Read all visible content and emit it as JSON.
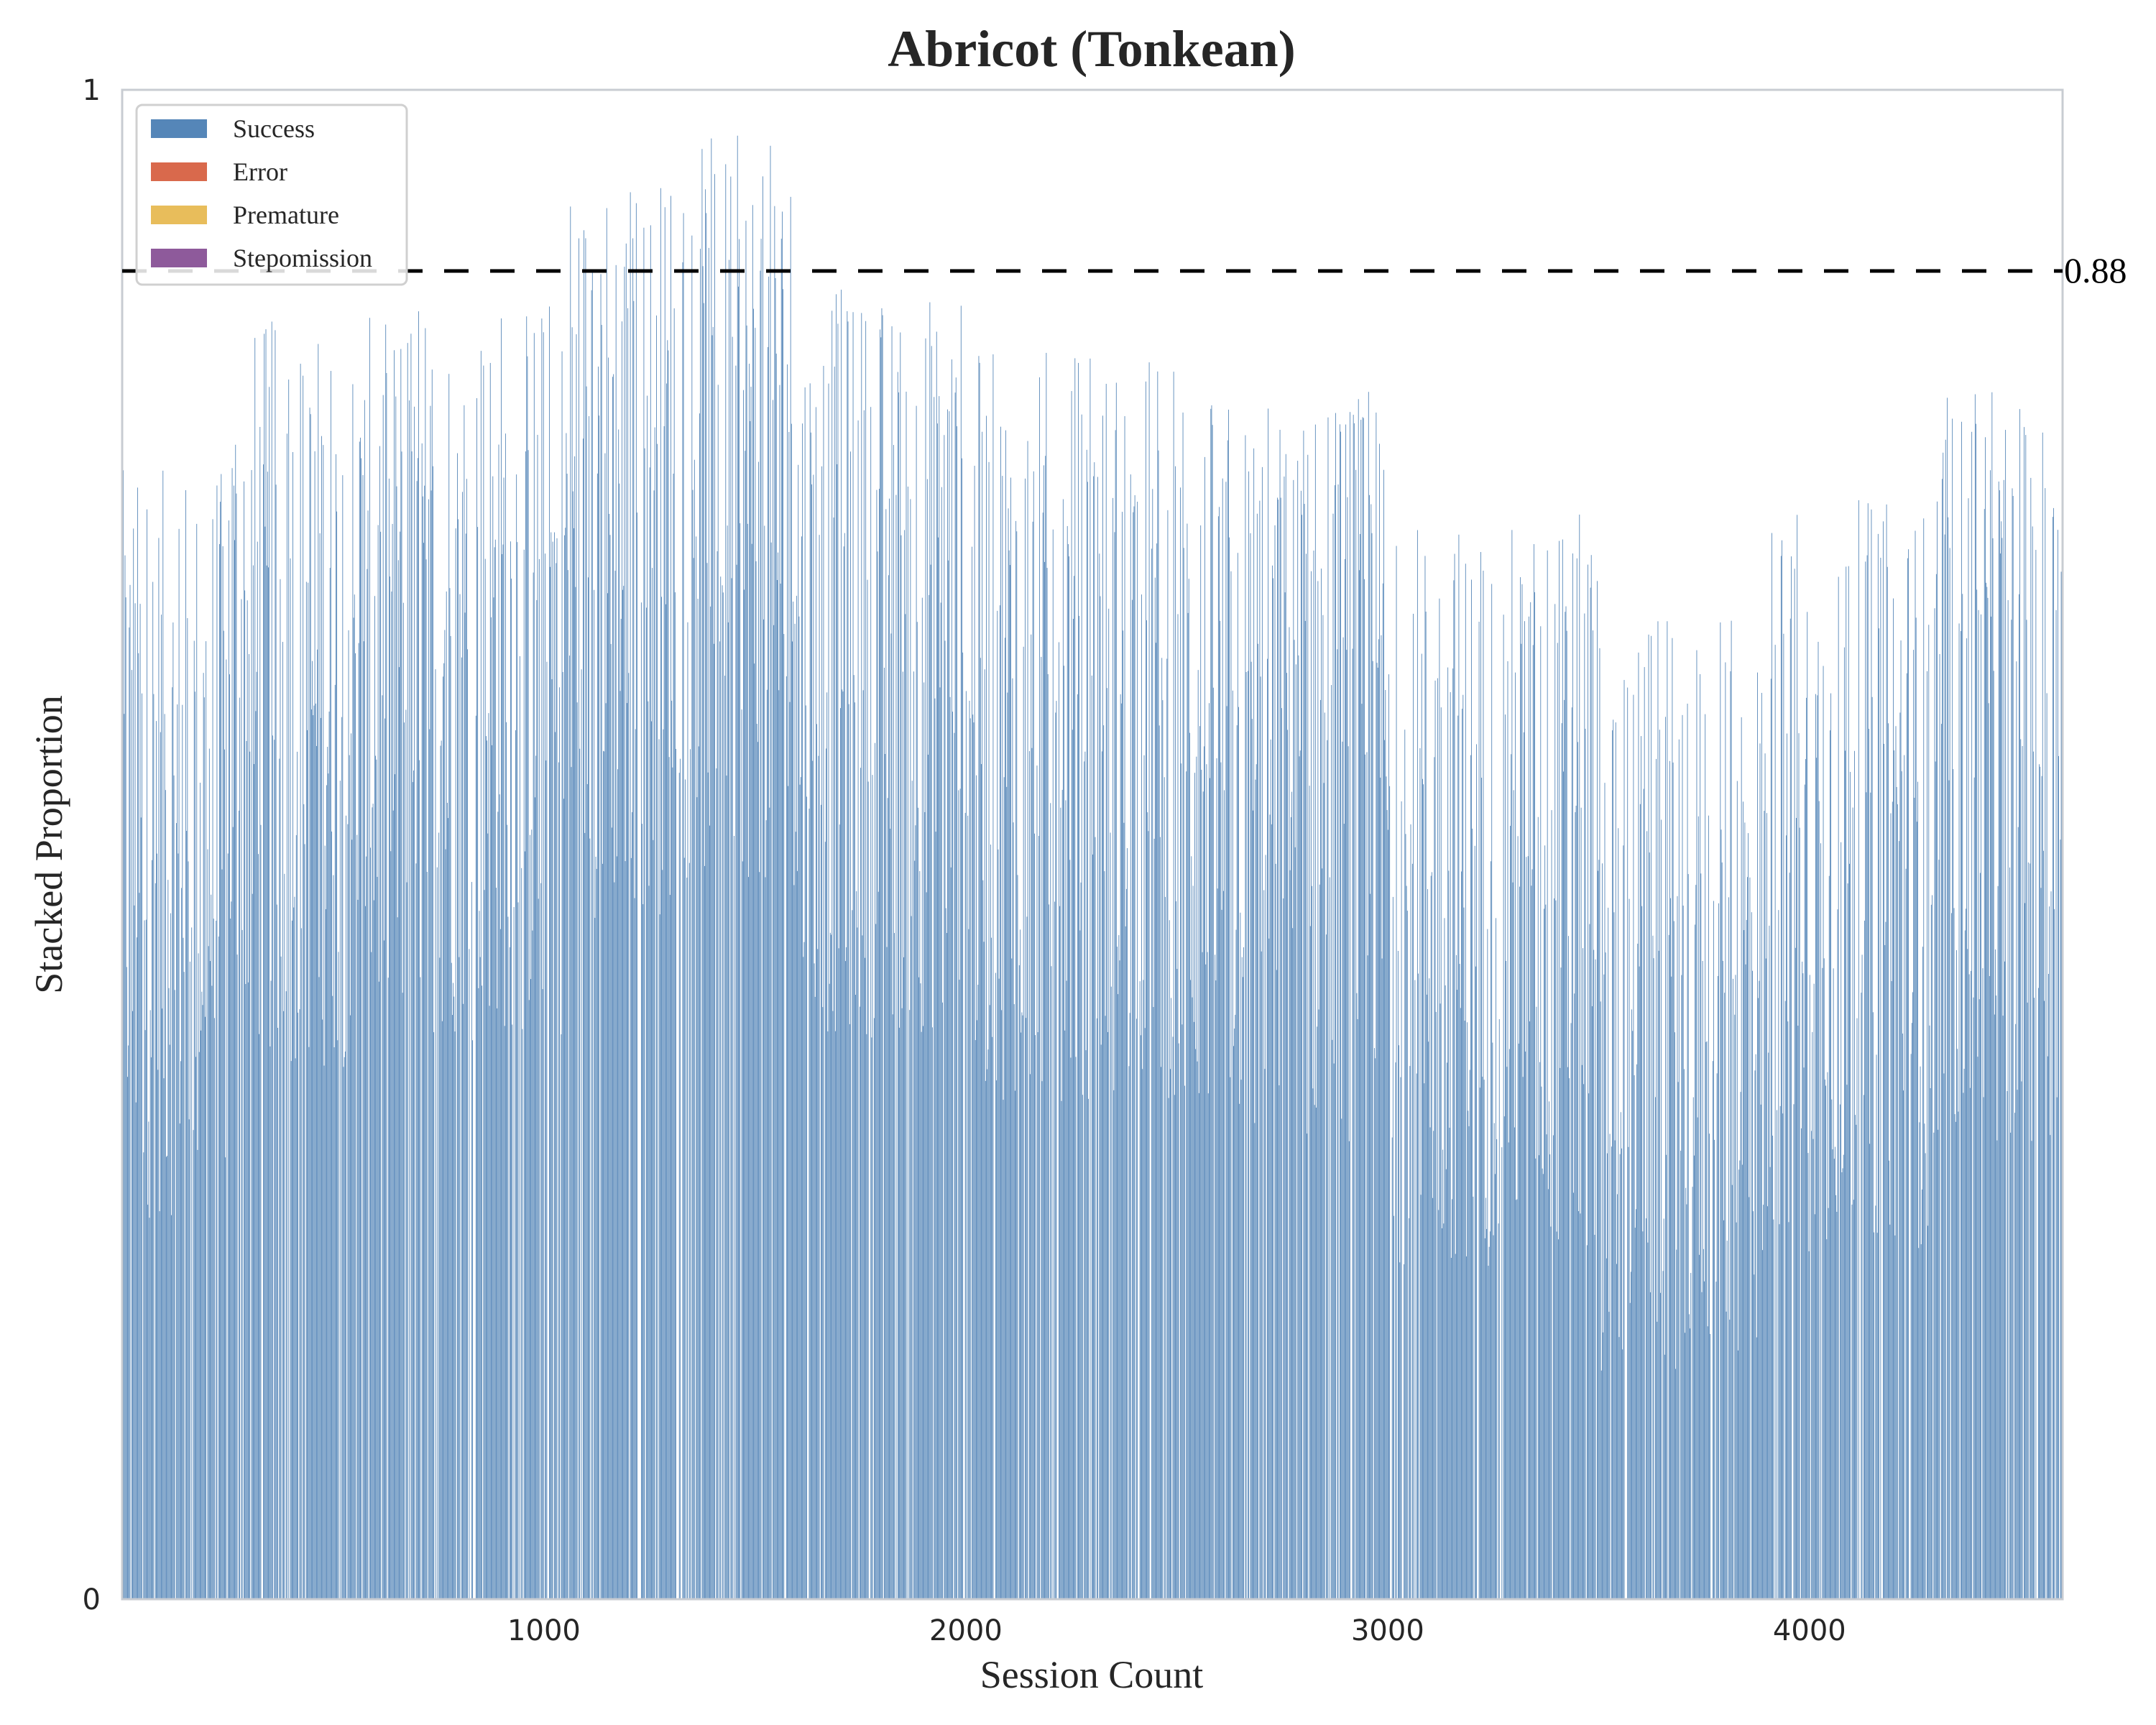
{
  "chart_data": {
    "type": "bar",
    "title": "Abricot (Tonkean)",
    "xlabel": "Session Count",
    "ylabel": "Stacked Proportion",
    "xlim": [
      0,
      4600
    ],
    "ylim": [
      0,
      1
    ],
    "x_ticks": [
      1000,
      2000,
      3000,
      4000
    ],
    "y_ticks": [
      0,
      1
    ],
    "grid": false,
    "legend_position": "top-left",
    "reference_line": {
      "value": 0.88,
      "label": "0.88",
      "style": "dashed",
      "color": "#000000"
    },
    "series": [
      {
        "name": "Success",
        "color": "#5586b8"
      },
      {
        "name": "Error",
        "color": "#d9694c"
      },
      {
        "name": "Premature",
        "color": "#e8bd5b"
      },
      {
        "name": "Stepomission",
        "color": "#8e5a9b"
      }
    ],
    "segments": [
      {
        "x_start": 0,
        "x_end": 250,
        "success_level": 0.5
      },
      {
        "x_start": 250,
        "x_end": 650,
        "success_level": 0.6
      },
      {
        "x_start": 650,
        "x_end": 1050,
        "success_level": 0.62
      },
      {
        "x_start": 1050,
        "x_end": 1300,
        "success_level": 0.7
      },
      {
        "x_start": 1300,
        "x_end": 1600,
        "success_level": 0.72
      },
      {
        "x_start": 1600,
        "x_end": 2000,
        "success_level": 0.62
      },
      {
        "x_start": 2000,
        "x_end": 2500,
        "success_level": 0.58
      },
      {
        "x_start": 2500,
        "x_end": 3000,
        "success_level": 0.55
      },
      {
        "x_start": 3000,
        "x_end": 3500,
        "success_level": 0.47
      },
      {
        "x_start": 3500,
        "x_end": 3900,
        "success_level": 0.4
      },
      {
        "x_start": 3900,
        "x_end": 4300,
        "success_level": 0.48
      },
      {
        "x_start": 4300,
        "x_end": 4600,
        "success_level": 0.55
      }
    ]
  }
}
